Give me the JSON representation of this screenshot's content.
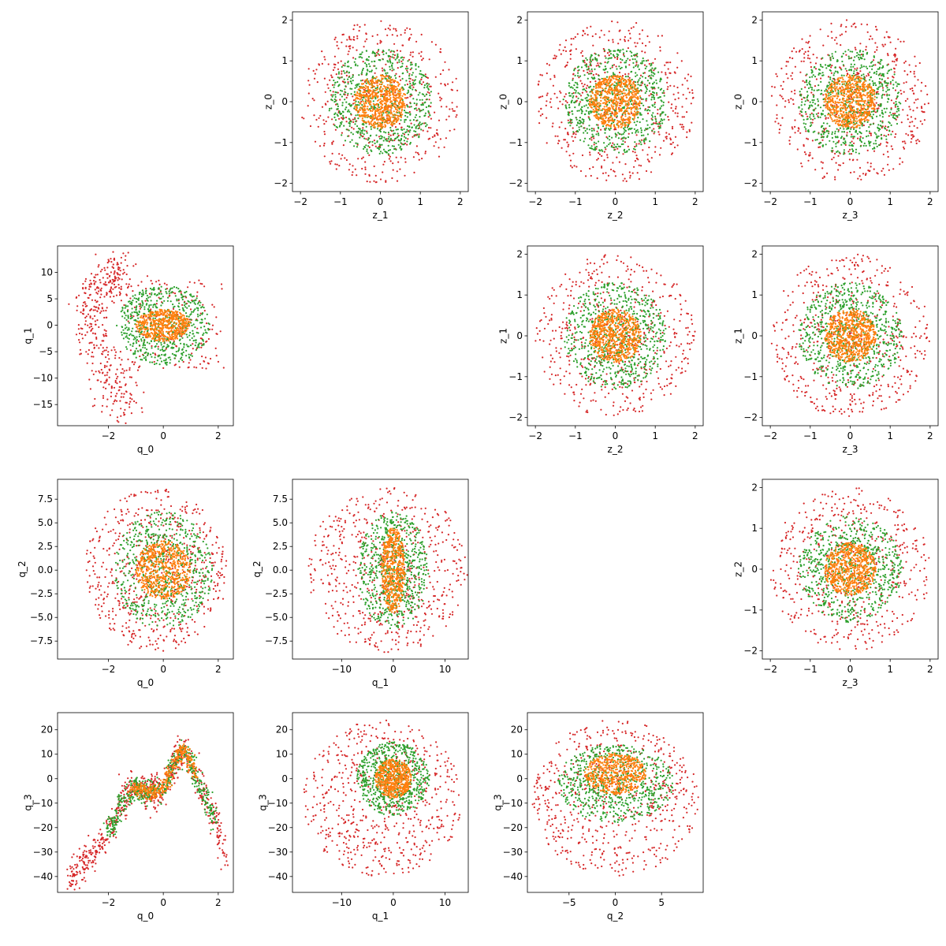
{
  "chart_data": [
    {
      "type": "scatter",
      "id": "z1_z0",
      "xlabel": "z_1",
      "ylabel": "z_0",
      "xlim": [
        -2.2,
        2.2
      ],
      "ylim": [
        -2.2,
        2.2
      ],
      "xticks": [
        -2,
        -1,
        0,
        1,
        2
      ],
      "yticks": [
        -2,
        -1,
        0,
        1,
        2
      ],
      "series": [
        {
          "color": "#d62728",
          "shape": "disk",
          "radius": 2.0,
          "n": 520
        },
        {
          "color": "#2ca02c",
          "shape": "disk",
          "radius": 1.3,
          "n": 700
        },
        {
          "color": "#ff7f0e",
          "shape": "disk",
          "radius": 0.65,
          "n": 650
        }
      ]
    },
    {
      "type": "scatter",
      "id": "z2_z0",
      "xlabel": "z_2",
      "ylabel": "z_0",
      "xlim": [
        -2.2,
        2.2
      ],
      "ylim": [
        -2.2,
        2.2
      ],
      "xticks": [
        -2,
        -1,
        0,
        1,
        2
      ],
      "yticks": [
        -2,
        -1,
        0,
        1,
        2
      ],
      "series": [
        {
          "color": "#d62728",
          "shape": "disk",
          "radius": 2.0,
          "n": 520
        },
        {
          "color": "#2ca02c",
          "shape": "disk",
          "radius": 1.3,
          "n": 700
        },
        {
          "color": "#ff7f0e",
          "shape": "disk",
          "radius": 0.65,
          "n": 650
        }
      ]
    },
    {
      "type": "scatter",
      "id": "z3_z0",
      "xlabel": "z_3",
      "ylabel": "z_0",
      "xlim": [
        -2.2,
        2.2
      ],
      "ylim": [
        -2.2,
        2.2
      ],
      "xticks": [
        -2,
        -1,
        0,
        1,
        2
      ],
      "yticks": [
        -2,
        -1,
        0,
        1,
        2
      ],
      "series": [
        {
          "color": "#d62728",
          "shape": "disk",
          "radius": 2.0,
          "n": 520
        },
        {
          "color": "#2ca02c",
          "shape": "disk",
          "radius": 1.3,
          "n": 700
        },
        {
          "color": "#ff7f0e",
          "shape": "disk",
          "radius": 0.65,
          "n": 650
        }
      ]
    },
    {
      "type": "scatter",
      "id": "q0_q1",
      "xlabel": "q_0",
      "ylabel": "q_1",
      "xlim": [
        -3.85,
        2.55
      ],
      "ylim": [
        -19,
        15
      ],
      "xticks": [
        -2,
        0,
        2
      ],
      "yticks": [
        -15,
        -10,
        -5,
        0,
        5,
        10
      ],
      "series": [
        {
          "color": "#d62728",
          "shape": "q01",
          "n": 600
        },
        {
          "color": "#2ca02c",
          "shape": "ellipse",
          "cx": 0,
          "cy": 0,
          "rx": 1.7,
          "ry": 7.5,
          "n": 600
        },
        {
          "color": "#ff7f0e",
          "shape": "ellipse",
          "cx": 0,
          "cy": 0,
          "rx": 1.0,
          "ry": 3.0,
          "n": 550
        }
      ]
    },
    {
      "type": "scatter",
      "id": "z2_z1",
      "xlabel": "z_2",
      "ylabel": "z_1",
      "xlim": [
        -2.2,
        2.2
      ],
      "ylim": [
        -2.2,
        2.2
      ],
      "xticks": [
        -2,
        -1,
        0,
        1,
        2
      ],
      "yticks": [
        -2,
        -1,
        0,
        1,
        2
      ],
      "series": [
        {
          "color": "#d62728",
          "shape": "disk",
          "radius": 2.0,
          "n": 520
        },
        {
          "color": "#2ca02c",
          "shape": "disk",
          "radius": 1.3,
          "n": 700
        },
        {
          "color": "#ff7f0e",
          "shape": "disk",
          "radius": 0.65,
          "n": 650
        }
      ]
    },
    {
      "type": "scatter",
      "id": "z3_z1",
      "xlabel": "z_3",
      "ylabel": "z_1",
      "xlim": [
        -2.2,
        2.2
      ],
      "ylim": [
        -2.2,
        2.2
      ],
      "xticks": [
        -2,
        -1,
        0,
        1,
        2
      ],
      "yticks": [
        -2,
        -1,
        0,
        1,
        2
      ],
      "series": [
        {
          "color": "#d62728",
          "shape": "disk",
          "radius": 2.0,
          "n": 520
        },
        {
          "color": "#2ca02c",
          "shape": "disk",
          "radius": 1.3,
          "n": 700
        },
        {
          "color": "#ff7f0e",
          "shape": "disk",
          "radius": 0.65,
          "n": 650
        }
      ]
    },
    {
      "type": "scatter",
      "id": "q0_q2",
      "xlabel": "q_0",
      "ylabel": "q_2",
      "xlim": [
        -3.85,
        2.55
      ],
      "ylim": [
        -9.4,
        9.6
      ],
      "xticks": [
        -2,
        0,
        2
      ],
      "yticks": [
        -7.5,
        -5.0,
        -2.5,
        0.0,
        2.5,
        5.0,
        7.5
      ],
      "yticklabels": [
        "−7.5",
        "−5.0",
        "−2.5",
        "0.0",
        "2.5",
        "5.0",
        "7.5"
      ],
      "series": [
        {
          "color": "#d62728",
          "shape": "ellipse",
          "cx": -0.25,
          "cy": 0,
          "rx": 2.6,
          "ry": 8.6,
          "n": 600
        },
        {
          "color": "#2ca02c",
          "shape": "ellipse",
          "cx": 0,
          "cy": 0,
          "rx": 1.8,
          "ry": 6.2,
          "n": 650
        },
        {
          "color": "#ff7f0e",
          "shape": "ellipse",
          "cx": 0,
          "cy": 0,
          "rx": 1.0,
          "ry": 3.1,
          "n": 600
        }
      ]
    },
    {
      "type": "scatter",
      "id": "q1_q2",
      "xlabel": "q_1",
      "ylabel": "q_2",
      "xlim": [
        -19.5,
        14.5
      ],
      "ylim": [
        -9.4,
        9.6
      ],
      "xticks": [
        -10,
        0,
        10
      ],
      "yticks": [
        -7.5,
        -5.0,
        -2.5,
        0.0,
        2.5,
        5.0,
        7.5
      ],
      "yticklabels": [
        "−7.5",
        "−5.0",
        "−2.5",
        "0.0",
        "2.5",
        "5.0",
        "7.5"
      ],
      "series": [
        {
          "color": "#d62728",
          "shape": "ellipse",
          "cx": -1,
          "cy": 0,
          "rx": 15.5,
          "ry": 8.8,
          "n": 600
        },
        {
          "color": "#2ca02c",
          "shape": "ellipse",
          "cx": 0,
          "cy": 0,
          "rx": 6.8,
          "ry": 6.2,
          "n": 650
        },
        {
          "color": "#ff7f0e",
          "shape": "ellipse",
          "cx": 0,
          "cy": 0,
          "rx": 2.3,
          "ry": 4.5,
          "n": 550
        }
      ]
    },
    {
      "type": "scatter",
      "id": "z3_z2",
      "xlabel": "z_3",
      "ylabel": "z_2",
      "xlim": [
        -2.2,
        2.2
      ],
      "ylim": [
        -2.2,
        2.2
      ],
      "xticks": [
        -2,
        -1,
        0,
        1,
        2
      ],
      "yticks": [
        -2,
        -1,
        0,
        1,
        2
      ],
      "series": [
        {
          "color": "#d62728",
          "shape": "disk",
          "radius": 2.0,
          "n": 520
        },
        {
          "color": "#2ca02c",
          "shape": "disk",
          "radius": 1.3,
          "n": 700
        },
        {
          "color": "#ff7f0e",
          "shape": "disk",
          "radius": 0.65,
          "n": 650
        }
      ]
    },
    {
      "type": "scatter",
      "id": "q0_q3",
      "xlabel": "q_0",
      "ylabel": "q_3",
      "xlim": [
        -3.85,
        2.55
      ],
      "ylim": [
        -46.5,
        27
      ],
      "xticks": [
        -2,
        0,
        2
      ],
      "yticks": [
        -40,
        -30,
        -20,
        -10,
        0,
        10,
        20
      ],
      "series": [
        {
          "color": "#d62728",
          "shape": "curve",
          "spread": 3.5,
          "n": 650
        },
        {
          "color": "#2ca02c",
          "shape": "curve",
          "spread": 2.2,
          "n": 500
        },
        {
          "color": "#ff7f0e",
          "shape": "curve",
          "spread": 1.5,
          "n": 350
        }
      ]
    },
    {
      "type": "scatter",
      "id": "q1_q3",
      "xlabel": "q_1",
      "ylabel": "q_3",
      "xlim": [
        -19.5,
        14.5
      ],
      "ylim": [
        -46.5,
        27
      ],
      "xticks": [
        -10,
        0,
        10
      ],
      "yticks": [
        -40,
        -30,
        -20,
        -10,
        0,
        10,
        20
      ],
      "series": [
        {
          "color": "#d62728",
          "shape": "ellipse",
          "cx": -2,
          "cy": -8,
          "rx": 15.5,
          "ry": 32,
          "n": 620
        },
        {
          "color": "#2ca02c",
          "shape": "ellipse",
          "cx": 0,
          "cy": 0,
          "rx": 7,
          "ry": 15,
          "n": 650
        },
        {
          "color": "#ff7f0e",
          "shape": "ellipse",
          "cx": 0,
          "cy": 0,
          "rx": 3.5,
          "ry": 8,
          "n": 550
        }
      ]
    },
    {
      "type": "scatter",
      "id": "q2_q3",
      "xlabel": "q_2",
      "ylabel": "q_3",
      "xlim": [
        -9.5,
        9.5
      ],
      "ylim": [
        -46.5,
        27
      ],
      "xticks": [
        -5,
        0,
        5
      ],
      "yticks": [
        -40,
        -30,
        -20,
        -10,
        0,
        10,
        20
      ],
      "series": [
        {
          "color": "#d62728",
          "shape": "ellipse",
          "cx": 0,
          "cy": -8,
          "rx": 9,
          "ry": 32,
          "n": 620
        },
        {
          "color": "#2ca02c",
          "shape": "ellipse",
          "cx": 0,
          "cy": -2,
          "rx": 6.3,
          "ry": 16,
          "n": 650
        },
        {
          "color": "#ff7f0e",
          "shape": "ellipse",
          "cx": 0,
          "cy": 2,
          "rx": 3.3,
          "ry": 8.5,
          "n": 550
        }
      ]
    }
  ]
}
